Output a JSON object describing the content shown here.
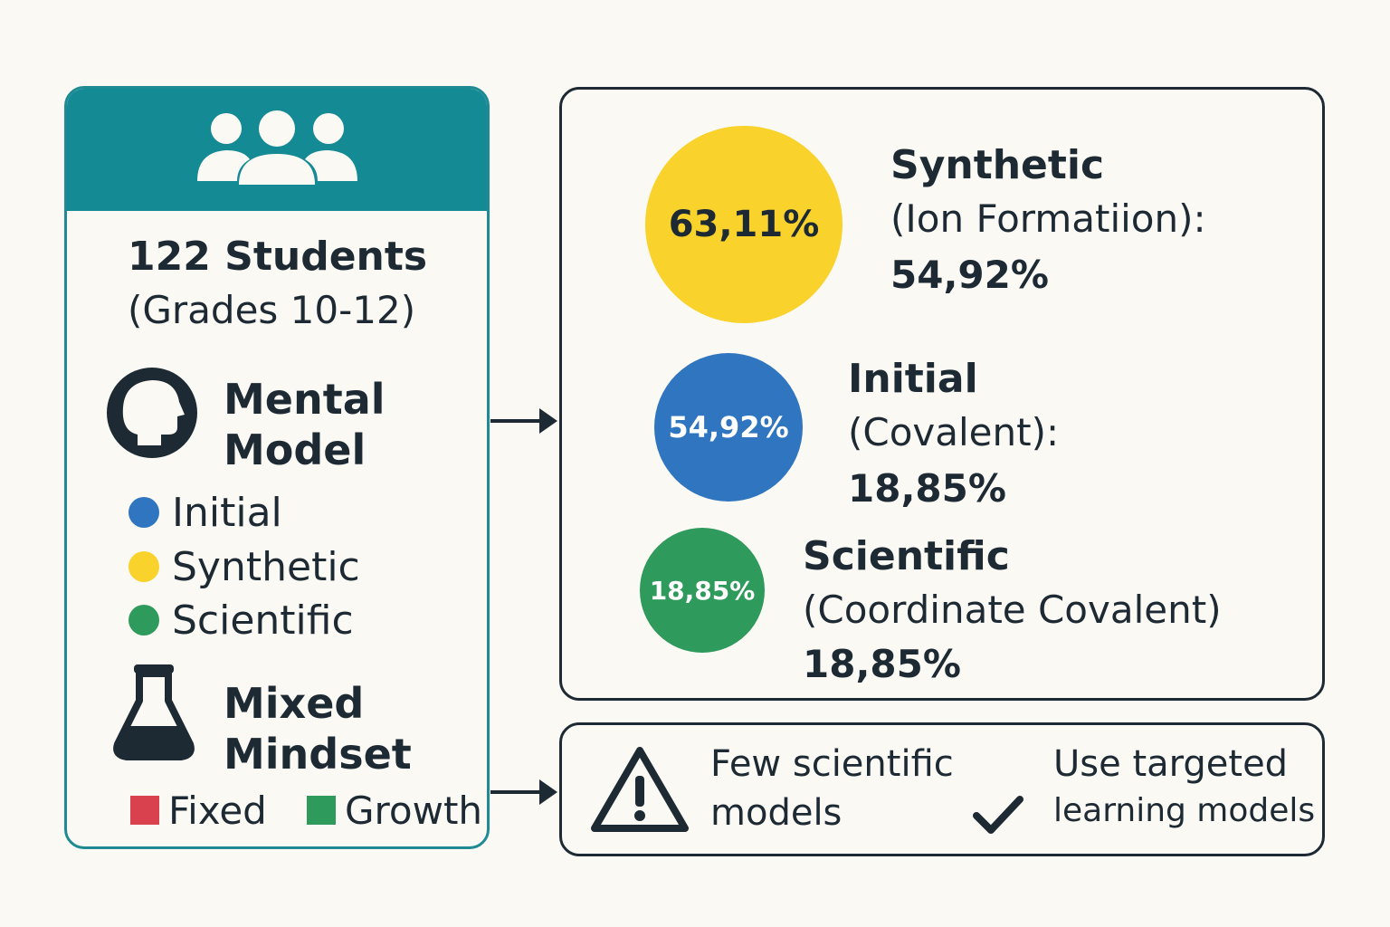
{
  "students": {
    "title": "122 Students",
    "subtitle": "(Grades 10-12)"
  },
  "mental_model": {
    "line1": "Mental",
    "line2": "Model",
    "legend": [
      {
        "label": "Initial",
        "color": "#2f75c0"
      },
      {
        "label": "Synthetic",
        "color": "#f9d22c"
      },
      {
        "label": "Scientific",
        "color": "#2e9a5c"
      }
    ]
  },
  "mindset": {
    "line1": "Mixed",
    "line2": "Mindset",
    "legend": [
      {
        "label": "Fixed",
        "color": "#d9414e"
      },
      {
        "label": "Growth",
        "color": "#2e9a5c"
      }
    ]
  },
  "results": [
    {
      "circle_value": "63,11%",
      "circle_color": "#f9d22c",
      "name": "Synthetic",
      "detail": "(Ion Formatiion):",
      "percent": "54,92%"
    },
    {
      "circle_value": "54,92%",
      "circle_color": "#2f75c0",
      "name": "Initial",
      "detail": "(Covalent):",
      "percent": "18,85%"
    },
    {
      "circle_value": "18,85%",
      "circle_color": "#2e9a5c",
      "name": "Scientific",
      "detail": "(Coordinate Covalent)",
      "percent": "18,85%"
    }
  ],
  "conclusion": {
    "warning_line1": "Few scientific",
    "warning_line2": "models",
    "recommend_line1": "Use targeted",
    "recommend_line2": "learning models"
  },
  "colors": {
    "teal": "#148a94",
    "dark": "#1d2a33"
  }
}
